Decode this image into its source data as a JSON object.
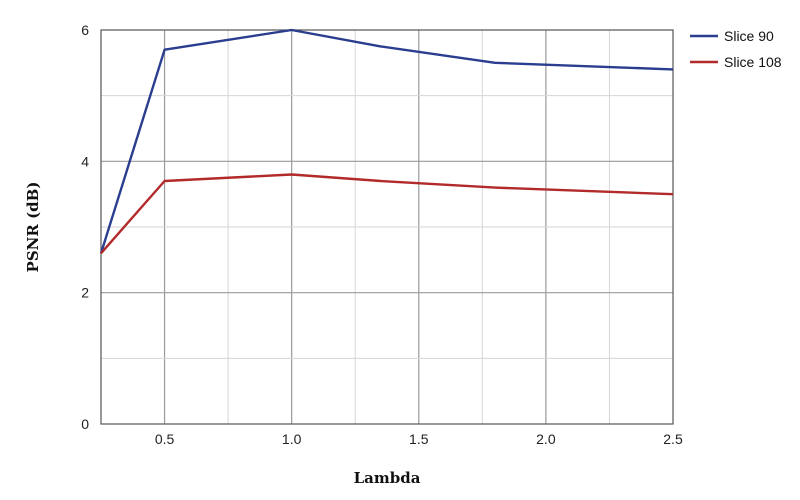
{
  "chart_data": {
    "type": "line",
    "title": "",
    "xlabel": "Lambda",
    "ylabel": "PSNR (dB)",
    "xlim": [
      0.25,
      2.5
    ],
    "ylim": [
      0,
      6
    ],
    "x_ticks": [
      0.5,
      1.0,
      1.5,
      2.0,
      2.5
    ],
    "x_tick_labels": [
      "0.5",
      "1.0",
      "1.5",
      "2.0",
      "2.5"
    ],
    "y_ticks": [
      0,
      2,
      4,
      6
    ],
    "y_tick_labels": [
      "0",
      "2",
      "4",
      "6"
    ],
    "grid": true,
    "legend_position": "top-right, outside plot area",
    "series": [
      {
        "name": "Slice 90",
        "color": "#2a3d8f",
        "x": [
          0.25,
          0.5,
          1.0,
          1.35,
          1.8,
          2.5
        ],
        "y": [
          2.6,
          5.7,
          6.0,
          5.75,
          5.5,
          5.4
        ]
      },
      {
        "name": "Slice 108",
        "color": "#b22a2a",
        "x": [
          0.25,
          0.5,
          1.0,
          1.35,
          1.8,
          2.5
        ],
        "y": [
          2.6,
          3.7,
          3.8,
          3.7,
          3.6,
          3.5
        ]
      }
    ]
  }
}
